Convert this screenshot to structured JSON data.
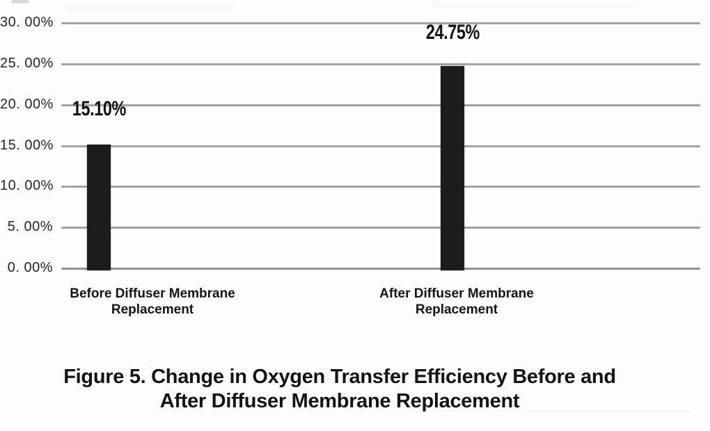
{
  "chart_data": {
    "type": "bar",
    "title": "",
    "categories": [
      {
        "line1": "Before Diffuser Membrane",
        "line2": "Replacement"
      },
      {
        "line1": "After Diffuser Membrane",
        "line2": "Replacement"
      }
    ],
    "values": [
      15.1,
      24.75
    ],
    "data_labels": [
      "15.10%",
      "24.75%"
    ],
    "yticks": [
      {
        "value": 0,
        "label": "0. 00%"
      },
      {
        "value": 5,
        "label": "5. 00%"
      },
      {
        "value": 10,
        "label": "10. 00%"
      },
      {
        "value": 15,
        "label": "15. 00%"
      },
      {
        "value": 20,
        "label": "20. 00%"
      },
      {
        "value": 25,
        "label": "25. 00%"
      },
      {
        "value": 30,
        "label": "30. 00%"
      }
    ],
    "ylim": [
      0,
      30
    ],
    "grid": true,
    "legend": "none",
    "bar_color": "#1d1b1b",
    "gridline_color": "#a2a2a2",
    "text_color": "#1a1a1a"
  },
  "caption": {
    "line1": "Figure 5. Change in Oxygen Transfer Efficiency Before and",
    "line2": "After Diffuser Membrane Replacement"
  }
}
